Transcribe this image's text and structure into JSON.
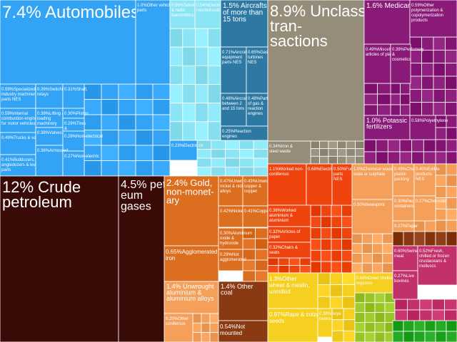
{
  "chart_data": {
    "type": "treemap",
    "title": "",
    "unit": "% of total",
    "colors": {
      "blue": "#33a3f5",
      "cyan": "#8be5f5",
      "teal": "#2d79a3",
      "gray": "#968c7a",
      "purple": "#8a1a78",
      "darkbrown": "#3a0a06",
      "orange": "#dc6e20",
      "redorange": "#f0440f",
      "lightorange": "#f5a05a",
      "brown": "#8a3a12",
      "yellow": "#f6d020",
      "lime": "#9ac528",
      "pink": "#c2316a",
      "green": "#20a520"
    },
    "items": [
      {
        "label": "Automobiles",
        "value": 7.4,
        "pct_text": "7.4%",
        "color": "blue"
      },
      {
        "label": "Other vehicles parts",
        "value": 1.0,
        "pct_text": "1.0%",
        "color": "blue"
      },
      {
        "label": "Specialized industry machinery & parts NES",
        "value": 0.59,
        "pct_text": "0.59%",
        "color": "blue"
      },
      {
        "label": "Switchboards, relays",
        "value": 0.39,
        "pct_text": "0.39%",
        "color": "blue"
      },
      {
        "label": "Shaft,",
        "value": 0.31,
        "pct_text": "0.31%",
        "color": "blue"
      },
      {
        "label": "Internal combustion engines for motor vehicles",
        "value": 0.59,
        "pct_text": "0.59%",
        "color": "blue"
      },
      {
        "label": "Lifting & loading machinery",
        "value": 0.39,
        "pct_text": "0.39%",
        "color": "blue"
      },
      {
        "label": "Piston",
        "value": 0.3,
        "pct_text": "0.30%",
        "color": "blue"
      },
      {
        "label": "Tires &",
        "value": 0.29,
        "pct_text": "0.29%",
        "color": "blue"
      },
      {
        "label": "Trucks & vans",
        "value": 0.49,
        "pct_text": "0.49%",
        "color": "blue"
      },
      {
        "label": "Valves",
        "value": 0.38,
        "pct_text": "0.38%",
        "color": "blue"
      },
      {
        "label": "Non-electrical",
        "value": 0.28,
        "pct_text": "0.28%",
        "color": "blue"
      },
      {
        "label": "Bulldozers, angledozers & levelers parts",
        "value": 0.41,
        "pct_text": "0.41%",
        "color": "blue"
      },
      {
        "label": "Armoured",
        "value": 0.36,
        "pct_text": "0.36%",
        "color": "blue"
      },
      {
        "label": "Non-electric",
        "value": 0.27,
        "pct_text": "0.27%",
        "color": "blue"
      },
      {
        "label": "Television & radio transmitters",
        "value": 0.56,
        "pct_text": "0.56%",
        "color": "cyan"
      },
      {
        "label": "Electronic microcircuits",
        "value": 0.54,
        "pct_text": "0.54%",
        "color": "cyan"
      },
      {
        "label": "Aircrafts of more than 15 tons",
        "value": 1.5,
        "pct_text": "1.5%",
        "color": "teal"
      },
      {
        "label": "Aircraft equipment parts NES",
        "value": 0.71,
        "pct_text": "0.71%",
        "color": "teal"
      },
      {
        "label": "Gas turbines NES",
        "value": 0.65,
        "pct_text": "0.65%",
        "color": "teal"
      },
      {
        "label": "Aircraft of between 2 and 15 tons",
        "value": 0.48,
        "pct_text": "0.48%",
        "color": "teal"
      },
      {
        "label": "Parts of gas & reaction engines",
        "value": 0.48,
        "pct_text": "0.48%",
        "color": "teal"
      },
      {
        "label": "Reaction engines",
        "value": 0.25,
        "pct_text": "0.25%",
        "color": "teal"
      },
      {
        "label": "Electric cir",
        "value": 0.23,
        "pct_text": "0.23%",
        "color": "blue"
      },
      {
        "label": "Unclassified transactions",
        "value": 8.9,
        "pct_text": "8.9%",
        "color": "gray"
      },
      {
        "label": "Iron & steel waste",
        "value": 0.34,
        "pct_text": "0.34%",
        "color": "gray"
      },
      {
        "label": "Medicaments",
        "value": 1.6,
        "pct_text": "1.6%",
        "color": "purple"
      },
      {
        "label": "Other polymerization & copolymerization products",
        "value": 0.59,
        "pct_text": "0.59%",
        "color": "purple"
      },
      {
        "label": "Miscellaneous articles of plastic",
        "value": 0.49,
        "pct_text": "0.49%",
        "color": "purple"
      },
      {
        "label": "Perfumery & cosmetics",
        "value": 0.39,
        "pct_text": "0.39%",
        "color": "purple"
      },
      {
        "label": "Potassic fertilizers",
        "value": 1.0,
        "pct_text": "1.0%",
        "color": "purple"
      },
      {
        "label": "Polyethylene",
        "value": 0.58,
        "pct_text": "0.58%",
        "color": "purple"
      },
      {
        "label": "Crude petroleum",
        "value": 12,
        "pct_text": "12%",
        "color": "darkbrown"
      },
      {
        "label": "petroleum gases",
        "value": 4.5,
        "pct_text": "4.5%",
        "color": "darkbrown"
      },
      {
        "label": "Gold, non-monetary",
        "value": 2.4,
        "pct_text": "2.4%",
        "color": "orange"
      },
      {
        "label": "Unwrought nickel & nickel alloys",
        "value": 0.47,
        "pct_text": "0.47%",
        "color": "orange"
      },
      {
        "label": "Unwrought copper & copper",
        "value": 0.43,
        "pct_text": "0.43%",
        "color": "orange"
      },
      {
        "label": "Nickel",
        "value": 0.42,
        "pct_text": "0.42%",
        "color": "orange"
      },
      {
        "label": "Copper",
        "value": 0.41,
        "pct_text": "0.41%",
        "color": "orange"
      },
      {
        "label": "Agglomerated iron",
        "value": 0.65,
        "pct_text": "0.65%",
        "color": "orange"
      },
      {
        "label": "Aluminium oxide & hydroxide",
        "value": 0.3,
        "pct_text": "0.30%",
        "color": "orange"
      },
      {
        "label": "Not agglomerated",
        "value": 0.29,
        "pct_text": "0.29%",
        "color": "orange"
      },
      {
        "label": "Unwrought aluminium & aluminium alloys",
        "value": 1.4,
        "pct_text": "1.4%",
        "color": "lightorange"
      },
      {
        "label": "Other coal",
        "value": 1.4,
        "pct_text": "1.4%",
        "color": "brown"
      },
      {
        "label": "Other coniferous",
        "value": 0.25,
        "pct_text": "0.25%",
        "color": "lightorange"
      },
      {
        "label": "Not mounted",
        "value": 0.54,
        "pct_text": "0.54%",
        "color": "brown"
      },
      {
        "label": "Worked non-coniferous",
        "value": 1.1,
        "pct_text": "1.1%",
        "color": "redorange"
      },
      {
        "label": "Electric current",
        "value": 0.68,
        "pct_text": "0.68%",
        "color": "redorange"
      },
      {
        "label": "Furniture parts NES",
        "value": 0.5,
        "pct_text": "0.50%",
        "color": "redorange"
      },
      {
        "label": "Chemical wood pulp, soda or sulphate",
        "value": 1.0,
        "pct_text": "1.0%",
        "color": "lightorange"
      },
      {
        "label": "Chocolate plastic packing",
        "value": 0.49,
        "pct_text": "0.49%",
        "color": "lightorange"
      },
      {
        "label": "Edible products NES",
        "value": 0.4,
        "pct_text": "0.40%",
        "color": "lightorange"
      },
      {
        "label": "Worked aluminium & aluminium",
        "value": 0.38,
        "pct_text": "0.38%",
        "color": "redorange"
      },
      {
        "label": "Articles of paper",
        "value": 0.32,
        "pct_text": "0.32%",
        "color": "redorange"
      },
      {
        "label": "Chairs & seats",
        "value": 0.32,
        "pct_text": "0.32%",
        "color": "redorange"
      },
      {
        "label": "Newsprint",
        "value": 0.5,
        "pct_text": "0.50%",
        "color": "lightorange"
      },
      {
        "label": "Packing containers",
        "value": 0.3,
        "pct_text": "0.30%",
        "color": "lightorange"
      },
      {
        "label": "Chocolate",
        "value": 0.27,
        "pct_text": "0.27%",
        "color": "lightorange"
      },
      {
        "label": "Paper",
        "value": 0.27,
        "pct_text": "0.27%",
        "color": "lightorange"
      },
      {
        "label": "Other wheat & meslin, unmilled",
        "value": 1.3,
        "pct_text": "1.3%",
        "color": "yellow"
      },
      {
        "label": "Dried shelled legumes",
        "value": 0.68,
        "pct_text": "0.68%",
        "color": "yellow"
      },
      {
        "label": "Rape & colza seeds",
        "value": 0.97,
        "pct_text": "0.97%",
        "color": "yellow"
      },
      {
        "label": "Soya beans",
        "value": 0.38,
        "pct_text": "0.38%",
        "color": "yellow"
      },
      {
        "label": "Swine meat",
        "value": 0.6,
        "pct_text": "0.60%",
        "color": "pink"
      },
      {
        "label": "Fresh, chilled or frozen crustaceans & molluscs",
        "value": 0.52,
        "pct_text": "0.52%",
        "color": "pink"
      },
      {
        "label": "Live bovines",
        "value": 0.27,
        "pct_text": "0.27%",
        "color": "pink"
      }
    ]
  }
}
